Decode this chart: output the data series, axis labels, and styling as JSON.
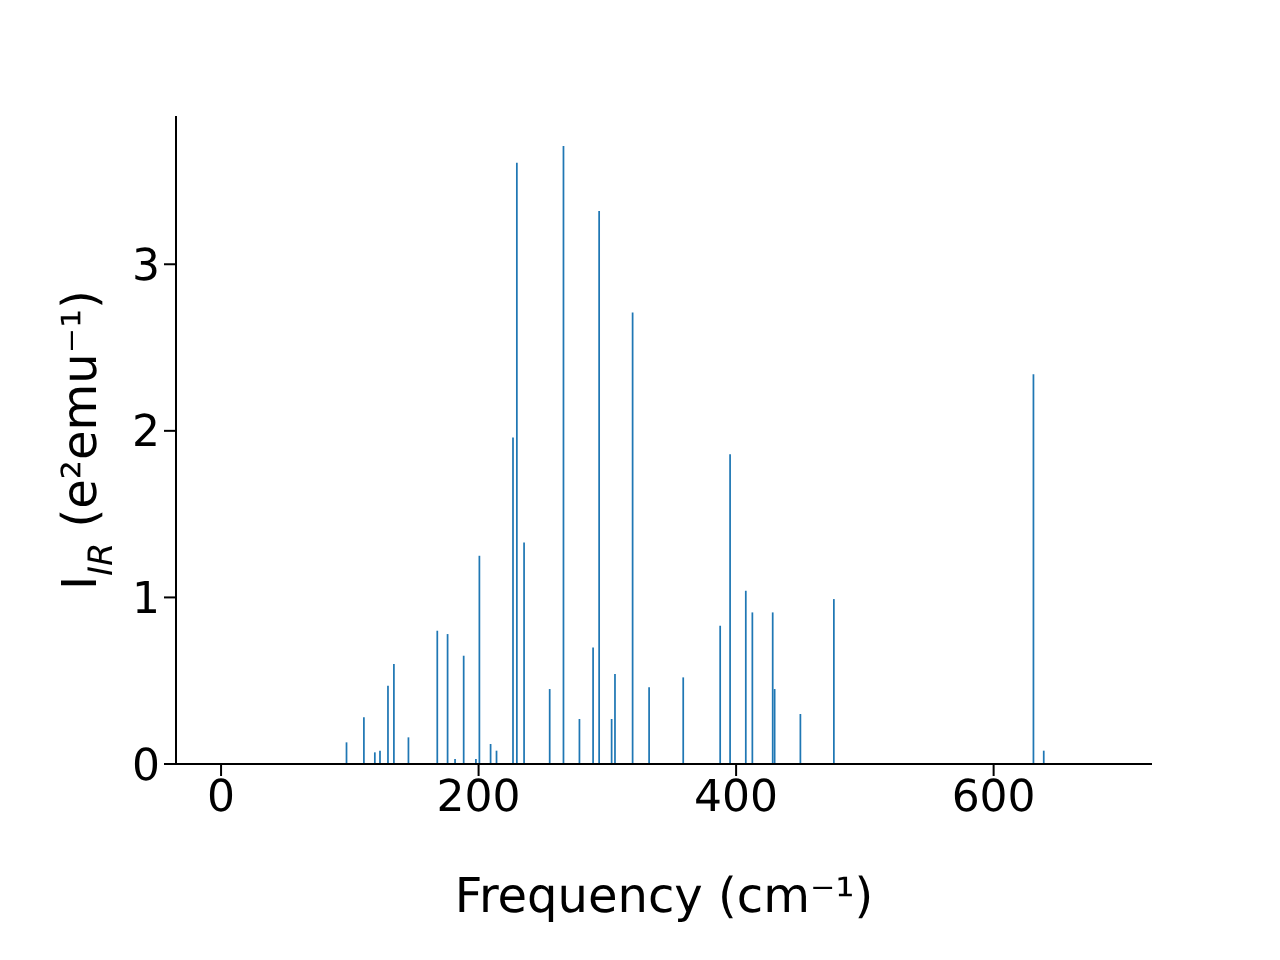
{
  "chart_data": {
    "type": "bar",
    "xlabel": "Frequency (cm⁻¹)",
    "ylabel": "I$_{IR}$ (e²emu⁻¹)",
    "color": "#1f77b4",
    "x": [
      97.5,
      111,
      119.5,
      123.5,
      129.7,
      134.3,
      145.6,
      168,
      176,
      181.8,
      188.5,
      198,
      200.7,
      209.4,
      214,
      226.8,
      229.8,
      235.4,
      255.3,
      266,
      273.8,
      278.4,
      289,
      293.7,
      303.4,
      306,
      319.7,
      332.5,
      359,
      372.4,
      387.7,
      395.4,
      407.6,
      412.7,
      428.5,
      430,
      450,
      476,
      485,
      557,
      631,
      639
    ],
    "values": [
      0.13,
      0.28,
      0.07,
      0.08,
      0.47,
      0.6,
      0.16,
      0.8,
      0.78,
      0.03,
      0.65,
      0.03,
      1.25,
      0.12,
      0.08,
      1.96,
      3.61,
      1.33,
      0.45,
      3.71,
      null,
      0.27,
      0.7,
      3.32,
      0.27,
      0.54,
      2.71,
      0.46,
      0.52,
      null,
      0.83,
      1.86,
      1.04,
      0.91,
      0.91,
      0.45,
      0.3,
      0.99,
      null,
      null,
      2.34,
      0.08
    ],
    "xlim": [
      -35,
      723
    ],
    "xticks": [
      0,
      200,
      400,
      600
    ],
    "ylim": [
      0,
      3.89
    ],
    "yticks": [
      0,
      1,
      2,
      3
    ],
    "grid": false
  }
}
